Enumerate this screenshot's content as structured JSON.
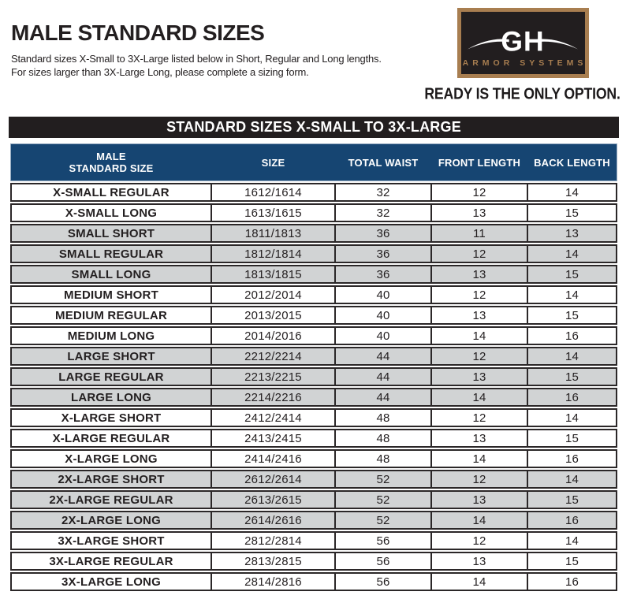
{
  "page": {
    "title": "MALE STANDARD SIZES",
    "subtitle_line1": "Standard sizes X-Small to 3X-Large listed below in Short, Regular and Long lengths.",
    "subtitle_line2": "For sizes larger than 3X-Large Long, please complete a sizing form."
  },
  "logo": {
    "monogram": "GH",
    "name": "ARMOR SYSTEMS",
    "tagline": "READY IS THE ONLY OPTION."
  },
  "banner": {
    "label": "STANDARD SIZES X-SMALL TO 3X-LARGE"
  },
  "table": {
    "columns": [
      "MALE\nSTANDARD SIZE",
      "SIZE",
      "TOTAL WAIST",
      "FRONT LENGTH",
      "BACK LENGTH"
    ],
    "rows": [
      {
        "label": "X-SMALL REGULAR",
        "size": "1612/1614",
        "total_waist": "32",
        "front_length": "12",
        "back_length": "14",
        "shaded": false
      },
      {
        "label": "X-SMALL LONG",
        "size": "1613/1615",
        "total_waist": "32",
        "front_length": "13",
        "back_length": "15",
        "shaded": false
      },
      {
        "label": "SMALL SHORT",
        "size": "1811/1813",
        "total_waist": "36",
        "front_length": "11",
        "back_length": "13",
        "shaded": true
      },
      {
        "label": "SMALL REGULAR",
        "size": "1812/1814",
        "total_waist": "36",
        "front_length": "12",
        "back_length": "14",
        "shaded": true
      },
      {
        "label": "SMALL LONG",
        "size": "1813/1815",
        "total_waist": "36",
        "front_length": "13",
        "back_length": "15",
        "shaded": true
      },
      {
        "label": "MEDIUM SHORT",
        "size": "2012/2014",
        "total_waist": "40",
        "front_length": "12",
        "back_length": "14",
        "shaded": false
      },
      {
        "label": "MEDIUM REGULAR",
        "size": "2013/2015",
        "total_waist": "40",
        "front_length": "13",
        "back_length": "15",
        "shaded": false
      },
      {
        "label": "MEDIUM LONG",
        "size": "2014/2016",
        "total_waist": "40",
        "front_length": "14",
        "back_length": "16",
        "shaded": false
      },
      {
        "label": "LARGE SHORT",
        "size": "2212/2214",
        "total_waist": "44",
        "front_length": "12",
        "back_length": "14",
        "shaded": true
      },
      {
        "label": "LARGE REGULAR",
        "size": "2213/2215",
        "total_waist": "44",
        "front_length": "13",
        "back_length": "15",
        "shaded": true
      },
      {
        "label": "LARGE LONG",
        "size": "2214/2216",
        "total_waist": "44",
        "front_length": "14",
        "back_length": "16",
        "shaded": true
      },
      {
        "label": "X-LARGE SHORT",
        "size": "2412/2414",
        "total_waist": "48",
        "front_length": "12",
        "back_length": "14",
        "shaded": false
      },
      {
        "label": "X-LARGE REGULAR",
        "size": "2413/2415",
        "total_waist": "48",
        "front_length": "13",
        "back_length": "15",
        "shaded": false
      },
      {
        "label": "X-LARGE LONG",
        "size": "2414/2416",
        "total_waist": "48",
        "front_length": "14",
        "back_length": "16",
        "shaded": false
      },
      {
        "label": "2X-LARGE SHORT",
        "size": "2612/2614",
        "total_waist": "52",
        "front_length": "12",
        "back_length": "14",
        "shaded": true
      },
      {
        "label": "2X-LARGE REGULAR",
        "size": "2613/2615",
        "total_waist": "52",
        "front_length": "13",
        "back_length": "15",
        "shaded": true
      },
      {
        "label": "2X-LARGE LONG",
        "size": "2614/2616",
        "total_waist": "52",
        "front_length": "14",
        "back_length": "16",
        "shaded": true
      },
      {
        "label": "3X-LARGE SHORT",
        "size": "2812/2814",
        "total_waist": "56",
        "front_length": "12",
        "back_length": "14",
        "shaded": false
      },
      {
        "label": "3X-LARGE REGULAR",
        "size": "2813/2815",
        "total_waist": "56",
        "front_length": "13",
        "back_length": "15",
        "shaded": false
      },
      {
        "label": "3X-LARGE LONG",
        "size": "2814/2816",
        "total_waist": "56",
        "front_length": "14",
        "back_length": "16",
        "shaded": false
      }
    ]
  },
  "colors": {
    "header_blue": "#164572",
    "row_gray": "#d1d3d4",
    "bronze": "#a87e50",
    "ink": "#231f20",
    "banner_black": "#221e1f"
  }
}
